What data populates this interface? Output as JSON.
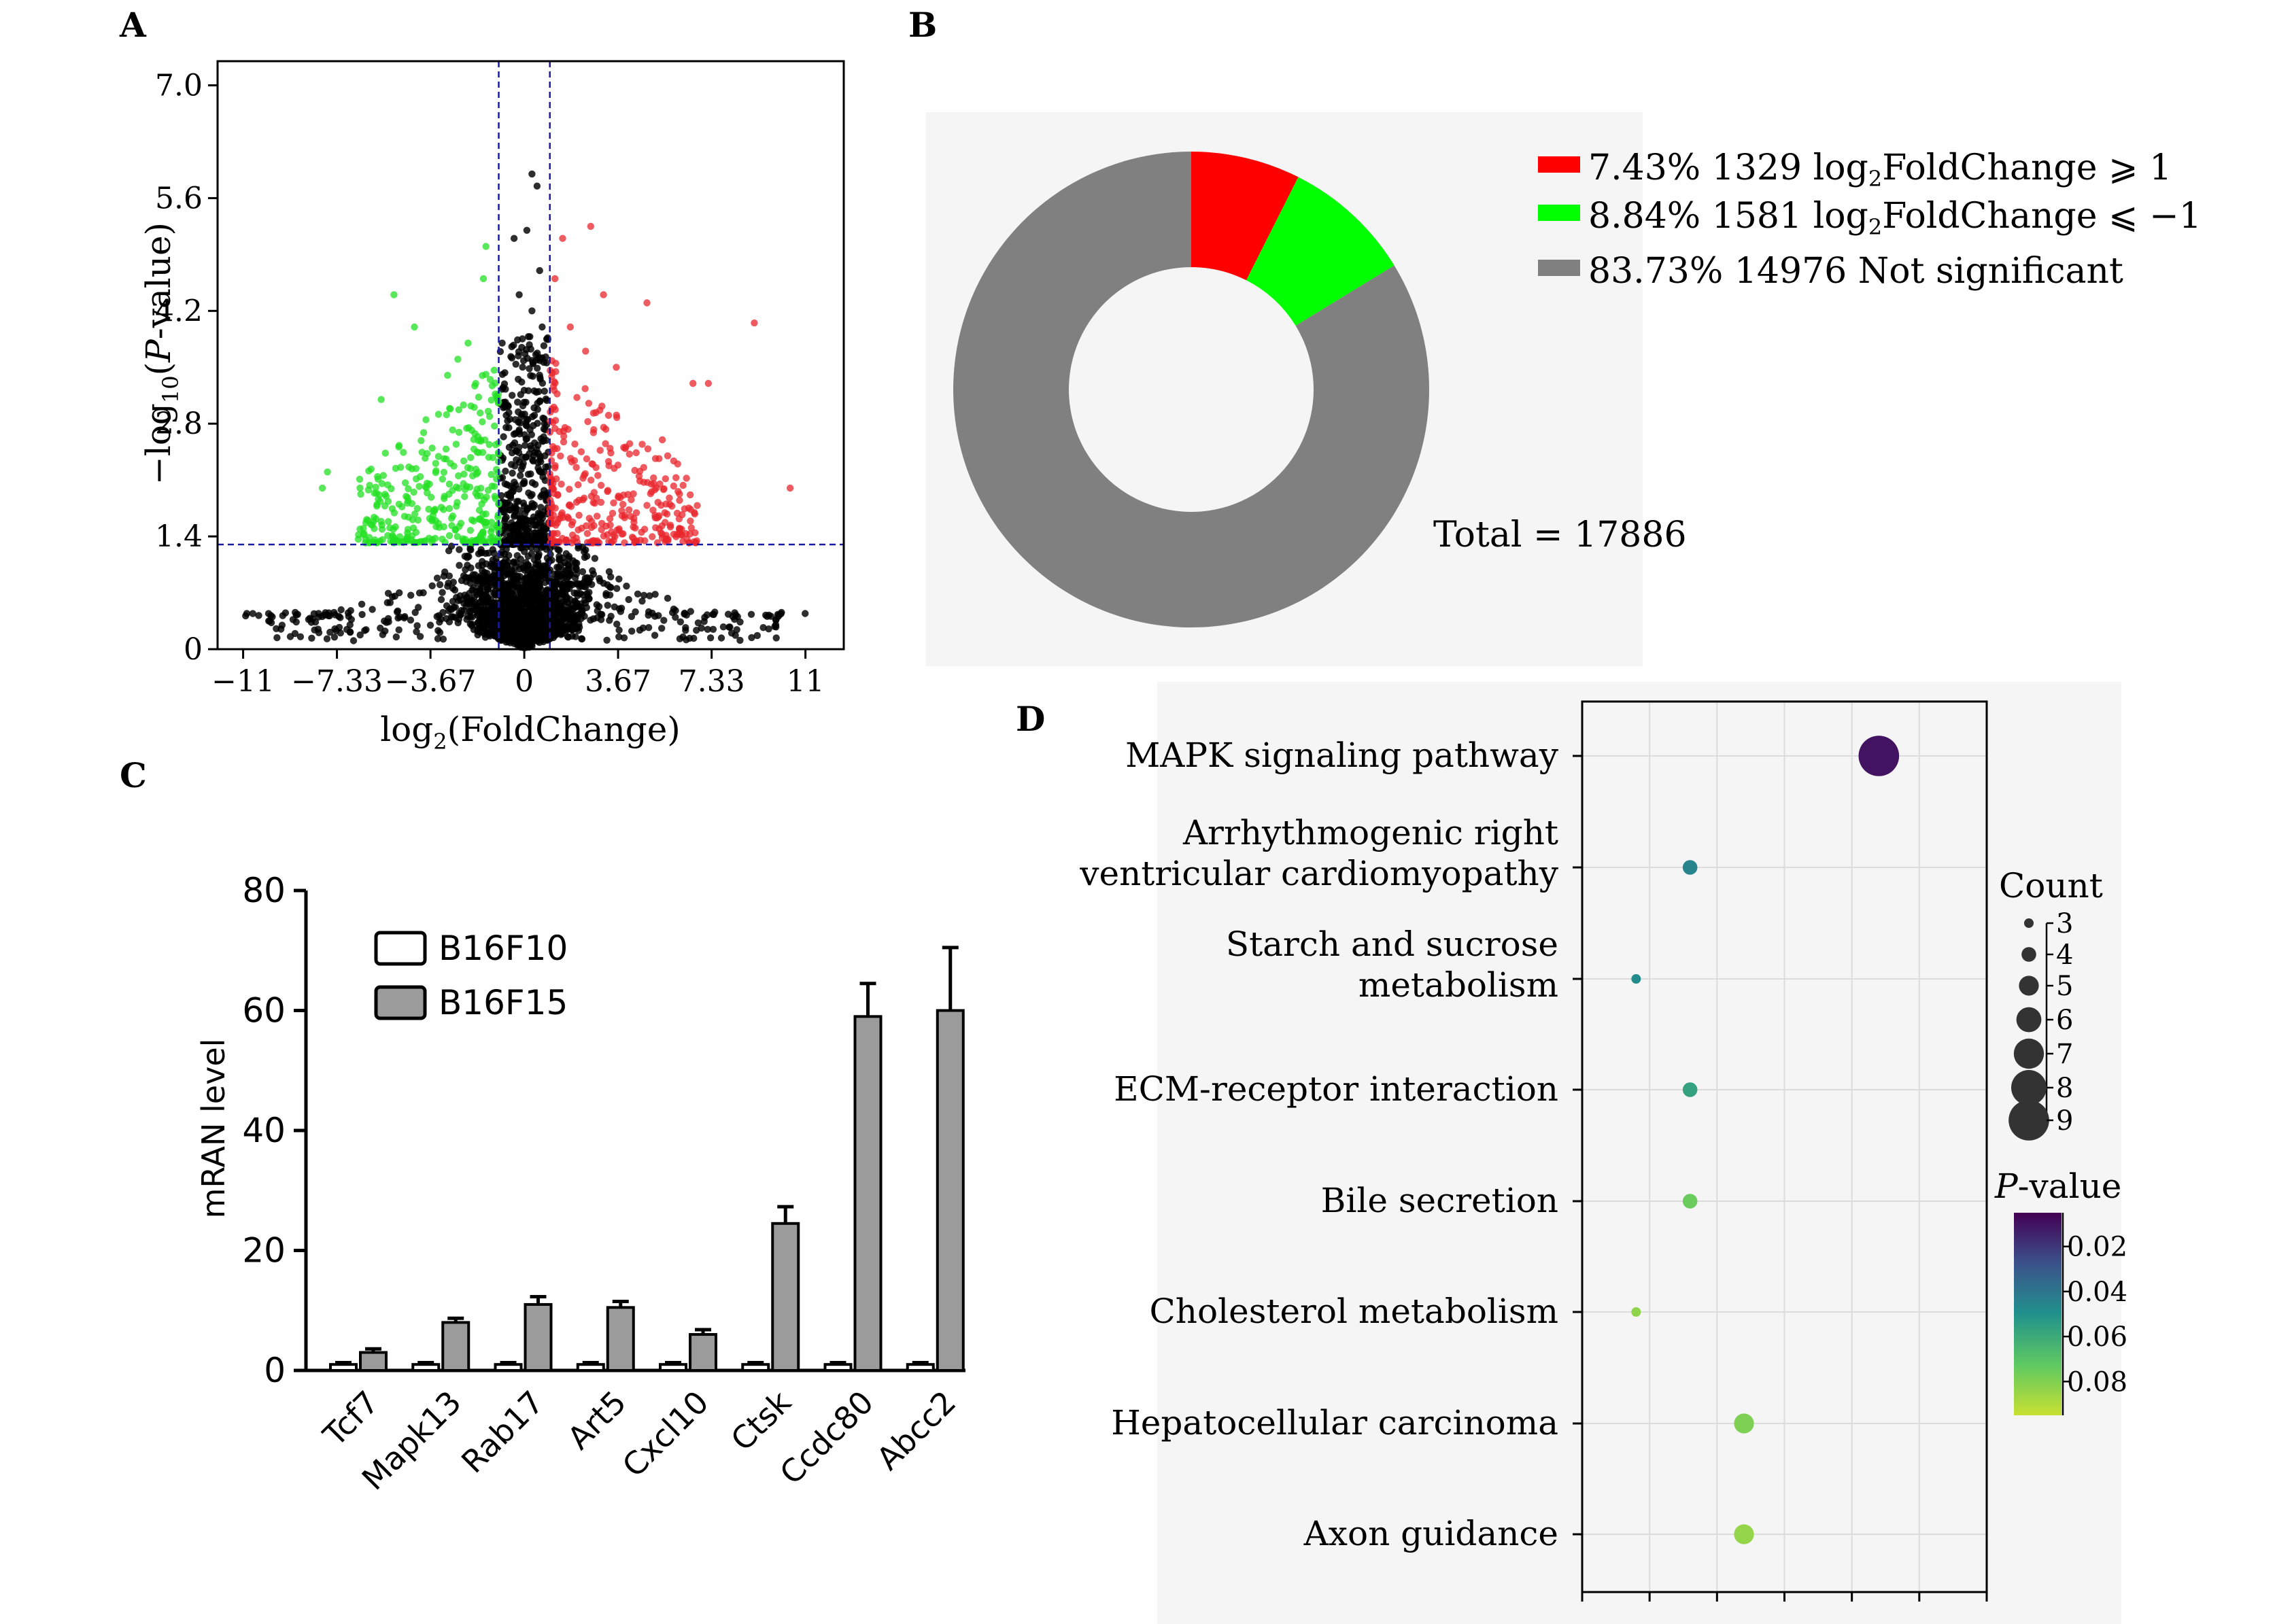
{
  "panels": {
    "a": "A",
    "b": "B",
    "c": "C",
    "d": "D"
  },
  "chart_data": [
    {
      "panel": "A",
      "type": "scatter",
      "xlabel_parts": [
        "log",
        "2",
        "(FoldChange)"
      ],
      "ylabel_parts": [
        "−log",
        "10",
        "(",
        "P",
        "-value)"
      ],
      "xlim": [
        -12,
        12.5
      ],
      "ylim": [
        0,
        7.3
      ],
      "x_ticks": [
        -11,
        -7.33,
        -3.67,
        0,
        3.67,
        7.33,
        11
      ],
      "x_tick_labels": [
        "−11",
        "−7.33",
        "−3.67",
        "0",
        "3.67",
        "7.33",
        "11"
      ],
      "y_ticks": [
        0,
        1.4,
        2.8,
        4.2,
        5.6,
        7.0
      ],
      "y_tick_labels": [
        "0",
        "1.4",
        "2.8",
        "4.2",
        "5.6",
        "7.0"
      ],
      "thresholds": {
        "x": [
          -1,
          1
        ],
        "y": 1.3
      },
      "colors": {
        "up": "#e8262c",
        "down": "#22e022",
        "ns": "#000000",
        "threshold": "#1a1aa8"
      },
      "counts": {
        "up": 1329,
        "down": 1581,
        "ns": 14976
      }
    },
    {
      "panel": "B",
      "type": "pie",
      "style": "donut",
      "slices": [
        {
          "percent": "7.43%",
          "count": "1329",
          "value": 7.43,
          "color": "#fe0000",
          "label": "log",
          "sub": "2",
          "tail": "FoldChange ⩾ 1"
        },
        {
          "percent": "8.84%",
          "count": "1581",
          "value": 8.84,
          "color": "#00ff00",
          "label": "log",
          "sub": "2",
          "tail": "FoldChange ⩽ −1"
        },
        {
          "percent": "83.73%",
          "count": "14976",
          "value": 83.73,
          "color": "#808080",
          "label": "Not significant",
          "sub": "",
          "tail": ""
        }
      ],
      "total_label": "Total = 17886",
      "background": "#f5f5f5"
    },
    {
      "panel": "C",
      "type": "bar",
      "categories": [
        "Tcf7",
        "Mapk13",
        "Rab17",
        "Art5",
        "Cxcl10",
        "Ctsk",
        "Ccdc80",
        "Abcc2"
      ],
      "series": [
        {
          "name": "B16F10",
          "values": [
            1,
            1,
            1,
            1,
            1,
            1,
            1,
            1
          ],
          "errors": [
            0.3,
            0.3,
            0.3,
            0.3,
            0.3,
            0.3,
            0.3,
            0.3
          ],
          "color": "#ffffff"
        },
        {
          "name": "B16F15",
          "values": [
            3,
            8,
            11,
            10.5,
            6,
            24.5,
            59,
            60
          ],
          "errors": [
            0.6,
            0.7,
            1.3,
            1.0,
            0.8,
            2.8,
            5.5,
            10.5
          ],
          "color": "#9b9b9b"
        }
      ],
      "ylabel": "mRAN level",
      "ylim": [
        0,
        80
      ],
      "y_ticks": [
        0,
        20,
        40,
        60,
        80
      ]
    },
    {
      "panel": "D",
      "type": "scatter",
      "style": "bubble",
      "categories": [
        [
          "MAPK signaling pathway"
        ],
        [
          "Arrhythmogenic right",
          "ventricular cardiomyopathy"
        ],
        [
          "Starch and sucrose",
          "metabolism"
        ],
        [
          "ECM-receptor interaction"
        ],
        [
          "Bile secretion"
        ],
        [
          "Cholesterol metabolism"
        ],
        [
          "Hepatocellular carcinoma"
        ],
        [
          "Axon guidance"
        ]
      ],
      "points": [
        {
          "x": 0.11,
          "count": 9,
          "p": 0.01
        },
        {
          "x": 0.04,
          "count": 4,
          "p": 0.045
        },
        {
          "x": 0.02,
          "count": 3,
          "p": 0.048
        },
        {
          "x": 0.04,
          "count": 4,
          "p": 0.057
        },
        {
          "x": 0.04,
          "count": 4,
          "p": 0.075
        },
        {
          "x": 0.02,
          "count": 3,
          "p": 0.083
        },
        {
          "x": 0.06,
          "count": 5,
          "p": 0.079
        },
        {
          "x": 0.06,
          "count": 5,
          "p": 0.084
        }
      ],
      "xlim": [
        0,
        0.15
      ],
      "count_legend": {
        "title": "Count",
        "values": [
          3,
          4,
          5,
          6,
          7,
          8,
          9
        ],
        "labels": [
          "3",
          "4",
          "5",
          "6",
          "7",
          "8",
          "9"
        ]
      },
      "p_legend": {
        "title_italic": "P",
        "title_rest": "-value",
        "range": [
          0.005,
          0.095
        ],
        "ticks": [
          0.02,
          0.04,
          0.06,
          0.08
        ],
        "tick_labels": [
          "0.02",
          "0.04",
          "0.06",
          "0.08"
        ]
      },
      "background": "#f5f5f5"
    }
  ]
}
